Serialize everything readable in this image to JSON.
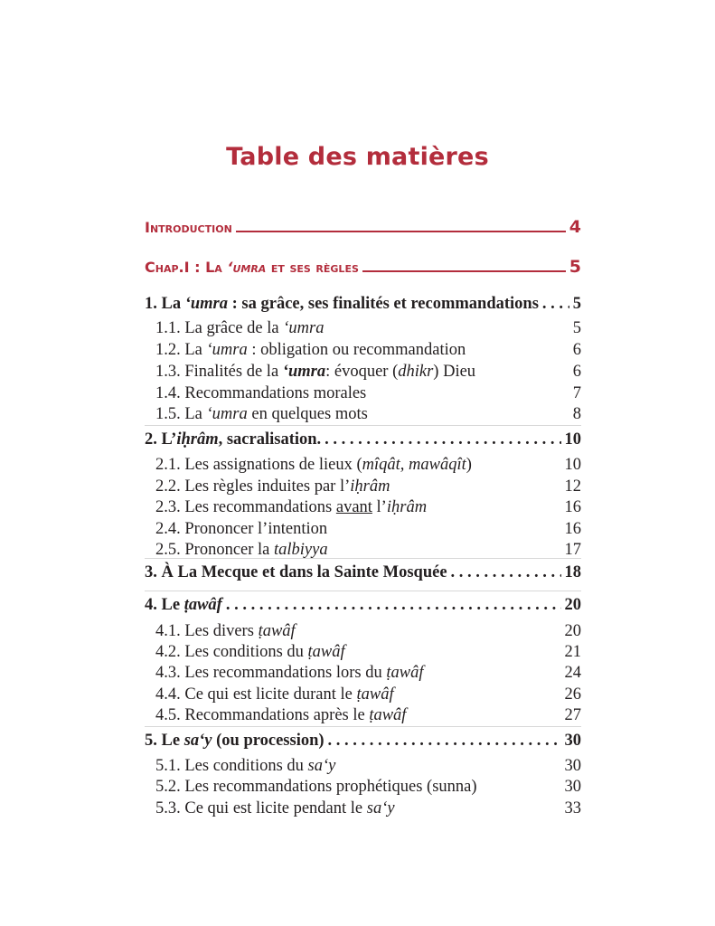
{
  "page_title": "Table des matières",
  "accent_color": "#b32d3c",
  "entries": [
    {
      "level": "chapter",
      "parts": [
        {
          "text": "Introduction",
          "s": "sc"
        }
      ],
      "page": "4"
    },
    {
      "level": "chapter",
      "parts": [
        {
          "text": "Chap.I : La ",
          "s": "sc"
        },
        {
          "text": "‘umra",
          "s": "sc i"
        },
        {
          "text": " et ses règles",
          "s": "sc"
        }
      ],
      "page": "5"
    },
    {
      "level": "section",
      "parts": [
        {
          "text": "1. La "
        },
        {
          "text": "‘umra",
          "s": "i"
        },
        {
          "text": " : sa grâce, ses finalités et recommandations"
        }
      ],
      "page": "5"
    },
    {
      "level": "sub",
      "parts": [
        {
          "text": "1.1. La grâce de la "
        },
        {
          "text": "‘umra",
          "s": "i"
        }
      ],
      "page": "5"
    },
    {
      "level": "sub",
      "parts": [
        {
          "text": "1.2. La "
        },
        {
          "text": "‘umra",
          "s": "i"
        },
        {
          "text": " : obligation ou recommandation"
        }
      ],
      "page": "6"
    },
    {
      "level": "sub",
      "parts": [
        {
          "text": "1.3. Finalités de la "
        },
        {
          "text": "‘umra",
          "s": "i b"
        },
        {
          "text": ": évoquer ("
        },
        {
          "text": "dhikr",
          "s": "i"
        },
        {
          "text": ") Dieu"
        }
      ],
      "page": "6"
    },
    {
      "level": "sub",
      "parts": [
        {
          "text": "1.4. Recommandations morales"
        }
      ],
      "page": "7"
    },
    {
      "level": "sub",
      "parts": [
        {
          "text": "1.5. La "
        },
        {
          "text": "‘umra",
          "s": "i"
        },
        {
          "text": " en quelques mots"
        }
      ],
      "page": "8"
    },
    {
      "level": "section",
      "parts": [
        {
          "text": "2. L’"
        },
        {
          "text": "iḥrâm",
          "s": "i"
        },
        {
          "text": ", sacralisation."
        }
      ],
      "page": "10"
    },
    {
      "level": "sub",
      "parts": [
        {
          "text": "2.1. Les assignations de lieux ("
        },
        {
          "text": "mîqât, mawâqît",
          "s": "i"
        },
        {
          "text": ")"
        }
      ],
      "page": "10"
    },
    {
      "level": "sub",
      "parts": [
        {
          "text": "2.2. Les règles induites par l’"
        },
        {
          "text": "iḥrâm",
          "s": "i"
        }
      ],
      "page": "12"
    },
    {
      "level": "sub",
      "parts": [
        {
          "text": "2.3. Les recommandations "
        },
        {
          "text": "avant",
          "s": "u"
        },
        {
          "text": " l’"
        },
        {
          "text": "iḥrâm",
          "s": "i"
        }
      ],
      "page": "16"
    },
    {
      "level": "sub",
      "parts": [
        {
          "text": "2.4. Prononcer l’intention"
        }
      ],
      "page": "16"
    },
    {
      "level": "sub",
      "parts": [
        {
          "text": "2.5. Prononcer la "
        },
        {
          "text": "talbiyya",
          "s": "i"
        }
      ],
      "page": "17"
    },
    {
      "level": "section",
      "parts": [
        {
          "text": "3. À La Mecque et dans la Sainte Mosquée"
        }
      ],
      "page": "18"
    },
    {
      "level": "section",
      "parts": [
        {
          "text": "4. Le "
        },
        {
          "text": "ṭawâf",
          "s": "i"
        }
      ],
      "page": "20"
    },
    {
      "level": "sub",
      "parts": [
        {
          "text": "4.1. Les divers "
        },
        {
          "text": "ṭawâf",
          "s": "i"
        }
      ],
      "page": "20"
    },
    {
      "level": "sub",
      "parts": [
        {
          "text": "4.2. Les conditions du "
        },
        {
          "text": "ṭawâf",
          "s": "i"
        }
      ],
      "page": "21"
    },
    {
      "level": "sub",
      "parts": [
        {
          "text": "4.3. Les recommandations lors du "
        },
        {
          "text": "ṭawâf",
          "s": "i"
        }
      ],
      "page": "24"
    },
    {
      "level": "sub",
      "parts": [
        {
          "text": "4.4. Ce qui est licite durant le "
        },
        {
          "text": "ṭawâf",
          "s": "i"
        }
      ],
      "page": "26"
    },
    {
      "level": "sub",
      "parts": [
        {
          "text": "4.5. Recommandations après le "
        },
        {
          "text": "ṭawâf",
          "s": "i"
        }
      ],
      "page": "27"
    },
    {
      "level": "section",
      "parts": [
        {
          "text": "5. Le "
        },
        {
          "text": "sa‘y",
          "s": "i"
        },
        {
          "text": " (ou procession)"
        }
      ],
      "page": "30"
    },
    {
      "level": "sub",
      "parts": [
        {
          "text": "5.1. Les conditions du "
        },
        {
          "text": "sa‘y",
          "s": "i"
        }
      ],
      "page": "30"
    },
    {
      "level": "sub",
      "parts": [
        {
          "text": "5.2. Les recommandations prophétiques (sunna)"
        }
      ],
      "page": "30"
    },
    {
      "level": "sub",
      "parts": [
        {
          "text": "5.3. Ce qui est licite pendant le "
        },
        {
          "text": "sa‘y",
          "s": "i"
        }
      ],
      "page": "33"
    }
  ]
}
